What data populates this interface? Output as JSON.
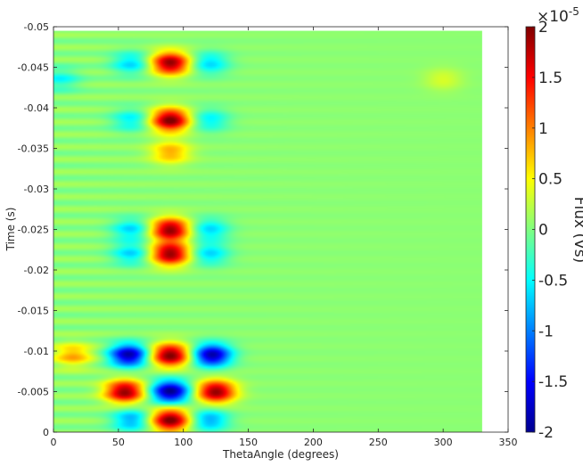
{
  "chart_data": {
    "type": "heatmap",
    "title": "",
    "xlabel": "ThetaAngle (degrees)",
    "ylabel": "Time (s)",
    "colorbar_label": "Flux (Vs)",
    "colorbar_exponent": "×10",
    "colorbar_exponent_power": "-5",
    "colormap": "jet",
    "xlim": [
      0,
      350
    ],
    "ylim": [
      -0.05,
      0
    ],
    "y_reversed": true,
    "clim": [
      -2,
      2
    ],
    "data_x_extent": [
      0,
      330
    ],
    "data_y_extent": [
      -0.0495,
      0
    ],
    "x_ticks": [
      0,
      50,
      100,
      150,
      200,
      250,
      300,
      350
    ],
    "x_tick_labels": [
      "0",
      "50",
      "100",
      "150",
      "200",
      "250",
      "300",
      "350"
    ],
    "y_ticks": [
      -0.05,
      -0.045,
      -0.04,
      -0.035,
      -0.03,
      -0.025,
      -0.02,
      -0.015,
      -0.01,
      -0.005,
      0
    ],
    "y_tick_labels": [
      "-0.05",
      "-0.045",
      "-0.04",
      "-0.035",
      "-0.03",
      "-0.025",
      "-0.02",
      "-0.015",
      "-0.01",
      "-0.005",
      "0"
    ],
    "colorbar_ticks": [
      2,
      1.5,
      1,
      0.5,
      0,
      -0.5,
      -1,
      -1.5,
      -2
    ],
    "colorbar_tick_labels": [
      "2",
      "1.5",
      "1",
      "0.5",
      "0",
      "-0.5",
      "-1",
      "-1.5",
      "-2"
    ],
    "background_value": 0.05,
    "features": [
      {
        "x": 90,
        "y": -0.0455,
        "value": 1.9
      },
      {
        "x": 60,
        "y": -0.0455,
        "value": -0.7
      },
      {
        "x": 120,
        "y": -0.0455,
        "value": -0.7
      },
      {
        "x": 90,
        "y": -0.0385,
        "value": 2.0
      },
      {
        "x": 90,
        "y": -0.0345,
        "value": 0.8
      },
      {
        "x": 60,
        "y": -0.0385,
        "value": -0.6
      },
      {
        "x": 120,
        "y": -0.0385,
        "value": -0.6
      },
      {
        "x": 90,
        "y": -0.025,
        "value": 1.9
      },
      {
        "x": 90,
        "y": -0.022,
        "value": 1.9
      },
      {
        "x": 60,
        "y": -0.025,
        "value": -0.7
      },
      {
        "x": 60,
        "y": -0.022,
        "value": -0.7
      },
      {
        "x": 120,
        "y": -0.025,
        "value": -0.7
      },
      {
        "x": 120,
        "y": -0.022,
        "value": -0.7
      },
      {
        "x": 90,
        "y": -0.0095,
        "value": 2.0
      },
      {
        "x": 58,
        "y": -0.0095,
        "value": -1.9
      },
      {
        "x": 122,
        "y": -0.0095,
        "value": -1.9
      },
      {
        "x": 90,
        "y": -0.005,
        "value": -2.0
      },
      {
        "x": 55,
        "y": -0.005,
        "value": 1.9
      },
      {
        "x": 125,
        "y": -0.005,
        "value": 1.9
      },
      {
        "x": 90,
        "y": -0.0015,
        "value": 2.0
      },
      {
        "x": 60,
        "y": -0.0015,
        "value": -0.9
      },
      {
        "x": 120,
        "y": -0.0015,
        "value": -0.9
      },
      {
        "x": 15,
        "y": -0.0095,
        "value": 0.8
      },
      {
        "x": 5,
        "y": -0.0435,
        "value": -0.5
      },
      {
        "x": 300,
        "y": -0.0435,
        "value": 0.3
      }
    ]
  }
}
